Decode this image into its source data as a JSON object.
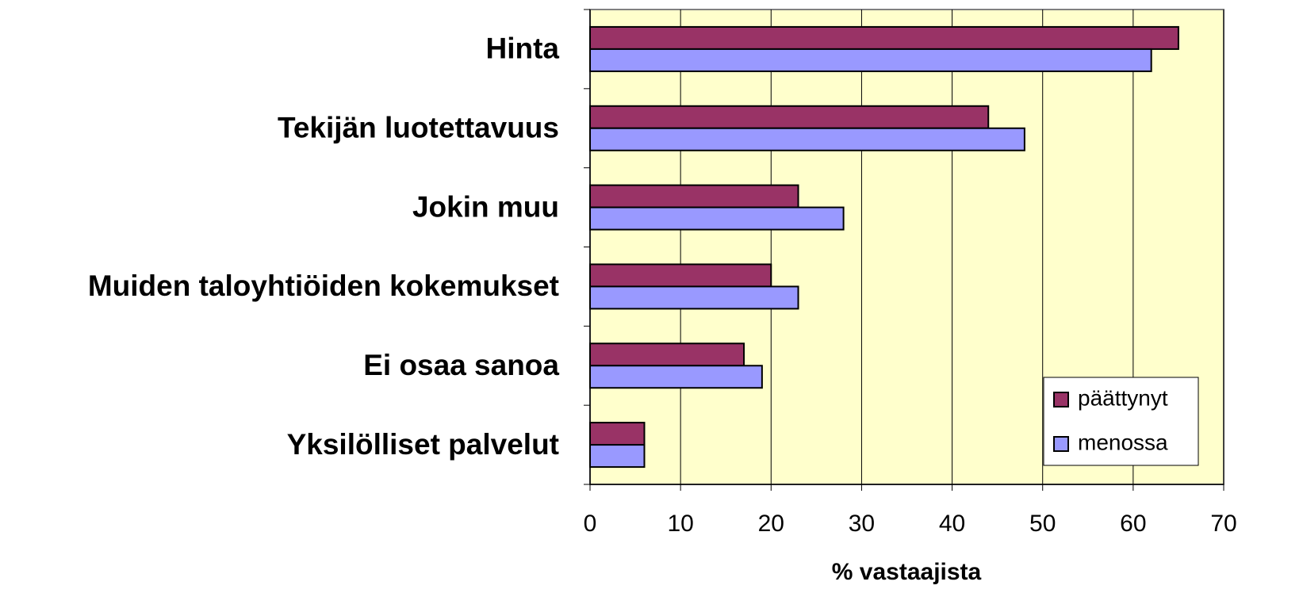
{
  "chart_data": {
    "type": "bar",
    "orientation": "horizontal",
    "categories": [
      "Hinta",
      "Tekijän luotettavuus",
      "Jokin muu",
      "Muiden taloyhtiöiden kokemukset",
      "Ei osaa sanoa",
      "Yksilölliset palvelut"
    ],
    "series": [
      {
        "name": "päättynyt",
        "color": "#993366",
        "values": [
          65,
          44,
          23,
          20,
          17,
          6
        ]
      },
      {
        "name": "menossa",
        "color": "#9999ff",
        "values": [
          62,
          48,
          28,
          23,
          19,
          6
        ]
      }
    ],
    "xlabel": "% vastaajista",
    "xlim": [
      0,
      70
    ],
    "xticks": [
      0,
      10,
      20,
      30,
      40,
      50,
      60,
      70
    ],
    "grid": true,
    "legend": "lower right",
    "plot_background": "#ffffcc"
  }
}
